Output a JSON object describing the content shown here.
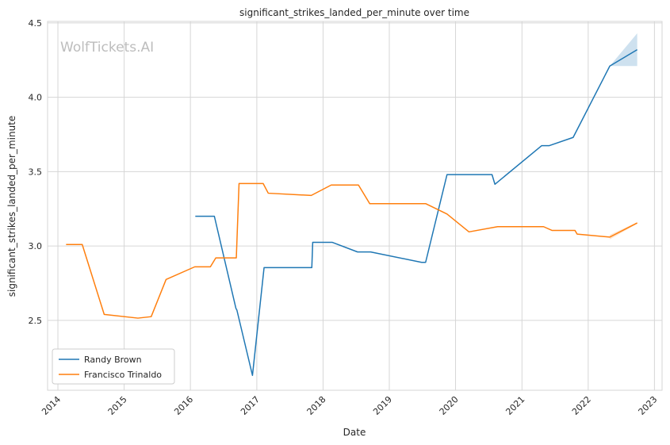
{
  "chart_data": {
    "type": "line",
    "title": "significant_strikes_landed_per_minute over time",
    "xlabel": "Date",
    "ylabel": "significant_strikes_landed_per_minute",
    "watermark": "WolfTickets.AI",
    "x_ticks": [
      "2014",
      "2015",
      "2016",
      "2017",
      "2018",
      "2019",
      "2020",
      "2021",
      "2022",
      "2023"
    ],
    "y_ticks": [
      "2.5",
      "3.0",
      "3.5",
      "4.0",
      "4.5"
    ],
    "xlim": [
      "2013-11-05",
      "2023-02-12"
    ],
    "ylim": [
      2.03,
      4.51
    ],
    "grid": true,
    "legend_position": "lower-left",
    "series": [
      {
        "name": "Randy Brown",
        "color": "#1f77b4",
        "points": [
          [
            "2016-01-28",
            3.2
          ],
          [
            "2016-05-12",
            3.2
          ],
          [
            "2016-09-08",
            2.58
          ],
          [
            "2016-09-13",
            2.57
          ],
          [
            "2016-12-08",
            2.13
          ],
          [
            "2017-02-10",
            2.855
          ],
          [
            "2017-10-31",
            2.855
          ],
          [
            "2017-11-05",
            3.025
          ],
          [
            "2018-02-20",
            3.025
          ],
          [
            "2018-07-10",
            2.96
          ],
          [
            "2018-09-20",
            2.96
          ],
          [
            "2019-06-28",
            2.89
          ],
          [
            "2019-07-20",
            2.89
          ],
          [
            "2019-11-15",
            3.48
          ],
          [
            "2020-07-20",
            3.48
          ],
          [
            "2020-08-05",
            3.415
          ],
          [
            "2021-04-20",
            3.675
          ],
          [
            "2021-06-01",
            3.675
          ],
          [
            "2021-10-10",
            3.73
          ],
          [
            "2022-04-30",
            4.21
          ],
          [
            "2022-09-28",
            4.32
          ]
        ],
        "band": [
          [
            "2022-04-30",
            4.21,
            4.21
          ],
          [
            "2022-09-28",
            4.21,
            4.43
          ]
        ]
      },
      {
        "name": "Francisco Trinaldo",
        "color": "#ff7f0e",
        "points": [
          [
            "2014-02-15",
            3.01
          ],
          [
            "2014-05-15",
            3.01
          ],
          [
            "2014-09-13",
            2.54
          ],
          [
            "2015-03-18",
            2.515
          ],
          [
            "2015-05-30",
            2.525
          ],
          [
            "2015-08-20",
            2.775
          ],
          [
            "2016-01-25",
            2.86
          ],
          [
            "2016-04-20",
            2.86
          ],
          [
            "2016-05-20",
            2.92
          ],
          [
            "2016-09-10",
            2.92
          ],
          [
            "2016-09-25",
            3.42
          ],
          [
            "2017-02-05",
            3.42
          ],
          [
            "2017-03-05",
            3.355
          ],
          [
            "2017-10-28",
            3.34
          ],
          [
            "2018-02-15",
            3.41
          ],
          [
            "2018-07-15",
            3.41
          ],
          [
            "2018-09-15",
            3.285
          ],
          [
            "2019-07-20",
            3.285
          ],
          [
            "2019-11-15",
            3.215
          ],
          [
            "2020-03-15",
            3.095
          ],
          [
            "2020-08-20",
            3.13
          ],
          [
            "2021-04-30",
            3.13
          ],
          [
            "2021-06-15",
            3.105
          ],
          [
            "2021-10-20",
            3.105
          ],
          [
            "2021-11-01",
            3.08
          ],
          [
            "2022-04-30",
            3.06
          ],
          [
            "2022-09-28",
            3.155
          ]
        ],
        "band": [
          [
            "2022-04-30",
            3.045,
            3.075
          ],
          [
            "2022-09-28",
            3.15,
            3.16
          ]
        ]
      }
    ]
  }
}
